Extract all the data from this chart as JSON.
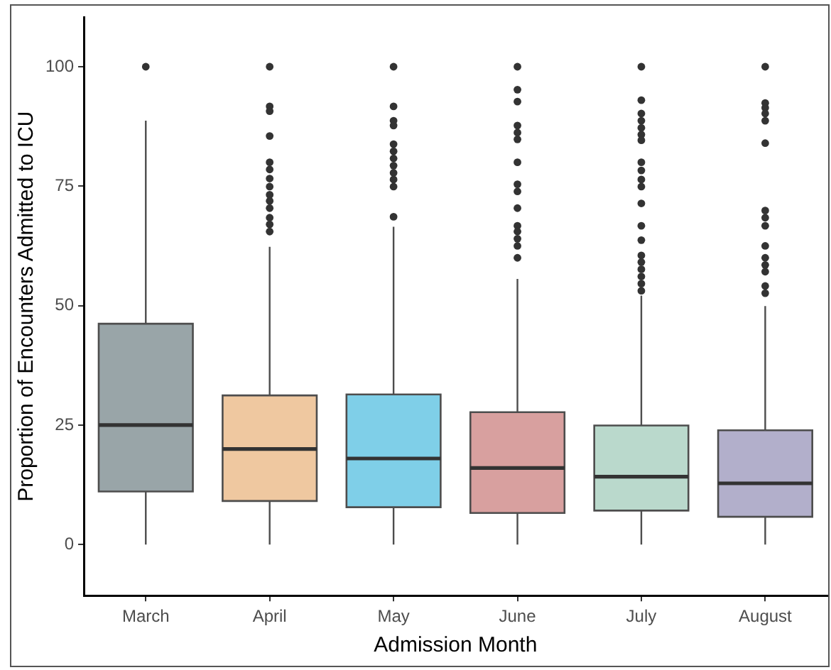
{
  "chart_data": {
    "type": "box",
    "xlabel": "Admission Month",
    "ylabel": "Proportion of Encounters Admitted to ICU",
    "categories": [
      "March",
      "April",
      "May",
      "June",
      "July",
      "August"
    ],
    "colors": [
      "#99a5a8",
      "#efc8a0",
      "#7fcfe8",
      "#d8a09f",
      "#bad9cc",
      "#b2afcb"
    ],
    "boxes": [
      {
        "low": 0,
        "q1": 11.1,
        "median": 25,
        "q3": 46.2,
        "high": 88.7,
        "outliers": [
          100
        ]
      },
      {
        "low": 0,
        "q1": 9.1,
        "median": 20,
        "q3": 31.2,
        "high": 62.3,
        "outliers": [
          100,
          91.7,
          90.7,
          85.5,
          80,
          78.5,
          76.6,
          74.9,
          73.2,
          71.9,
          70.4,
          68.4,
          67,
          65.5
        ]
      },
      {
        "low": 0,
        "q1": 7.8,
        "median": 18,
        "q3": 31.4,
        "high": 66.5,
        "outliers": [
          100,
          91.7,
          88.7,
          87.7,
          83.8,
          82.3,
          80.8,
          79.3,
          77.8,
          76.4,
          74.9,
          68.6
        ]
      },
      {
        "low": 0,
        "q1": 6.6,
        "median": 16,
        "q3": 27.7,
        "high": 55.6,
        "outliers": [
          100,
          95.2,
          92.7,
          87.7,
          86.2,
          84.8,
          80,
          75.4,
          73.9,
          70.4,
          66.7,
          65.5,
          64,
          62.5,
          60
        ]
      },
      {
        "low": 0,
        "q1": 7.1,
        "median": 14.2,
        "q3": 24.9,
        "high": 52.1,
        "outliers": [
          100,
          93,
          90.2,
          88.7,
          87.2,
          85.8,
          84.6,
          80,
          78.3,
          76.4,
          74.9,
          71.4,
          66.7,
          63.7,
          60.5,
          59.1,
          57.6,
          56.1,
          54.6,
          53.1
        ]
      },
      {
        "low": 0,
        "q1": 5.8,
        "median": 12.8,
        "q3": 23.9,
        "high": 49.9,
        "outliers": [
          100,
          92.4,
          91.4,
          90.2,
          88.7,
          84,
          69.9,
          68.4,
          66.7,
          62.5,
          60,
          58.5,
          57.1,
          54.1,
          52.6
        ]
      }
    ],
    "ylim": [
      -10.7,
      110.4
    ],
    "yticks": [
      0,
      25,
      50,
      75,
      100
    ]
  }
}
